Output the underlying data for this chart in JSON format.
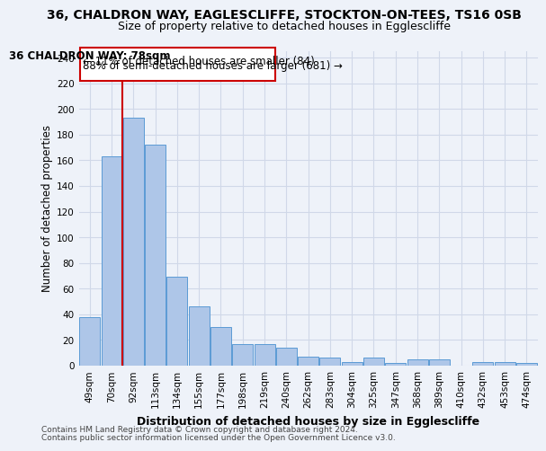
{
  "title": "36, CHALDRON WAY, EAGLESCLIFFE, STOCKTON-ON-TEES, TS16 0SB",
  "subtitle": "Size of property relative to detached houses in Egglescliffe",
  "xlabel": "Distribution of detached houses by size in Egglescliffe",
  "ylabel": "Number of detached properties",
  "categories": [
    "49sqm",
    "70sqm",
    "92sqm",
    "113sqm",
    "134sqm",
    "155sqm",
    "177sqm",
    "198sqm",
    "219sqm",
    "240sqm",
    "262sqm",
    "283sqm",
    "304sqm",
    "325sqm",
    "347sqm",
    "368sqm",
    "389sqm",
    "410sqm",
    "432sqm",
    "453sqm",
    "474sqm"
  ],
  "values": [
    38,
    163,
    193,
    172,
    69,
    46,
    30,
    17,
    17,
    14,
    7,
    6,
    3,
    6,
    2,
    5,
    5,
    0,
    3,
    3,
    2
  ],
  "bar_color": "#aec6e8",
  "bar_edge_color": "#5b9bd5",
  "grid_color": "#d0d8e8",
  "annotation_box_color": "#cc0000",
  "property_line_color": "#cc0000",
  "annotation_text_line1": "36 CHALDRON WAY: 78sqm",
  "annotation_text_line2": "← 11% of detached houses are smaller (84)",
  "annotation_text_line3": "88% of semi-detached houses are larger (681) →",
  "footer_line1": "Contains HM Land Registry data © Crown copyright and database right 2024.",
  "footer_line2": "Contains public sector information licensed under the Open Government Licence v3.0.",
  "ylim": [
    0,
    245
  ],
  "yticks": [
    0,
    20,
    40,
    60,
    80,
    100,
    120,
    140,
    160,
    180,
    200,
    220,
    240
  ],
  "title_fontsize": 10,
  "subtitle_fontsize": 9,
  "xlabel_fontsize": 9,
  "ylabel_fontsize": 8.5,
  "tick_fontsize": 7.5,
  "annotation_fontsize": 8.5,
  "footer_fontsize": 6.5,
  "background_color": "#eef2f9"
}
